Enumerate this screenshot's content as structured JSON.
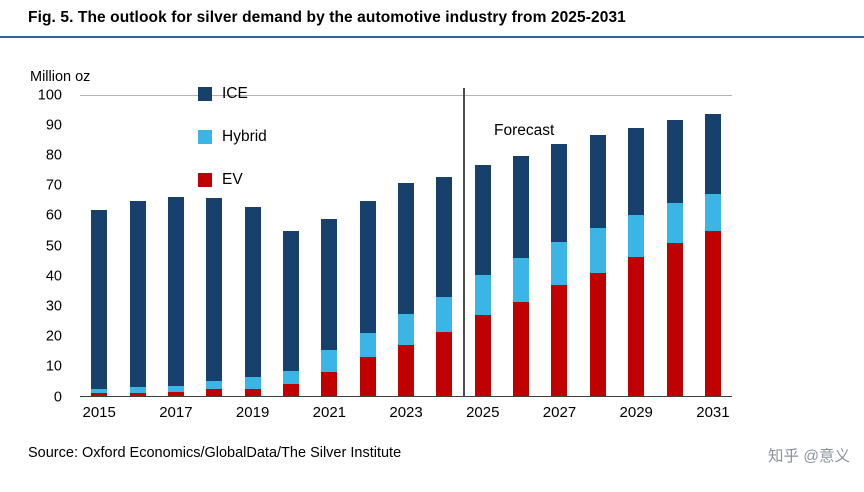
{
  "title": "Fig. 5. The outlook for silver demand by the automotive industry from 2025-2031",
  "y_axis_label": "Million oz",
  "forecast_label": "Forecast",
  "source": "Source: Oxford Economics/GlobalData/The Silver Institute",
  "watermark": "知乎 @意义",
  "colors": {
    "ice": "#17406d",
    "hybrid": "#3ab5e5",
    "ev": "#c00000",
    "title_rule": "#2a64ae"
  },
  "chart_data": {
    "type": "bar",
    "stacked": true,
    "title": "Fig. 5. The outlook for silver demand by the automotive industry from 2025-2031",
    "ylabel": "Million oz",
    "ylim": [
      0,
      100
    ],
    "yticks": [
      0,
      10,
      20,
      30,
      40,
      50,
      60,
      70,
      80,
      90,
      100
    ],
    "categories": [
      "2015",
      "2016",
      "2017",
      "2018",
      "2019",
      "2020",
      "2021",
      "2022",
      "2023",
      "2024",
      "2025",
      "2026",
      "2027",
      "2028",
      "2029",
      "2030",
      "2031"
    ],
    "xtick_labels": [
      "2015",
      "2017",
      "2019",
      "2021",
      "2023",
      "2025",
      "2027",
      "2029",
      "2031"
    ],
    "series": [
      {
        "name": "ICE",
        "color": "#17406d",
        "values": [
          59.5,
          62,
          63,
          61,
          56.5,
          46.5,
          43.5,
          44,
          43.5,
          40,
          36.5,
          34,
          32.5,
          31,
          29,
          27.5,
          26.5
        ]
      },
      {
        "name": "Hybrid",
        "color": "#3ab5e5",
        "values": [
          1.5,
          2,
          2,
          2.5,
          4,
          4.5,
          7.5,
          8,
          10.5,
          11.5,
          13.5,
          14.5,
          14.5,
          15,
          14,
          13.5,
          12.5
        ]
      },
      {
        "name": "EV",
        "color": "#c00000",
        "values": [
          1,
          1,
          1.5,
          2.5,
          2.5,
          4,
          8,
          13,
          17,
          21.5,
          27,
          31.5,
          37,
          41,
          46.5,
          51,
          55
        ]
      }
    ],
    "totals": [
      62,
      65,
      66.5,
      66,
      63,
      55,
      59,
      65,
      71,
      73,
      77,
      80,
      84,
      87,
      89.5,
      92,
      94
    ],
    "forecast_start": "2025",
    "legend_position": "top-left-inside",
    "grid": false
  }
}
